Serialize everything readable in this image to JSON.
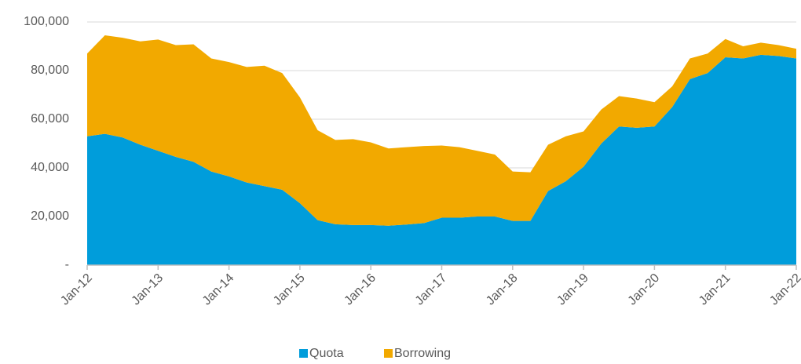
{
  "chart_data": {
    "type": "stacked-area",
    "categories": [
      "Jan-12",
      null,
      null,
      null,
      "Jan-13",
      null,
      null,
      null,
      "Jan-14",
      null,
      null,
      null,
      "Jan-15",
      null,
      null,
      null,
      "Jan-16",
      null,
      null,
      null,
      "Jan-17",
      null,
      null,
      null,
      "Jan-18",
      null,
      null,
      null,
      "Jan-19",
      null,
      null,
      null,
      "Jan-20",
      null,
      null,
      null,
      "Jan-21",
      null,
      null,
      null,
      "Jan-22"
    ],
    "series": [
      {
        "name": "Quota",
        "color": "#009ddb",
        "values": [
          53000,
          54000,
          52500,
          49500,
          47000,
          44500,
          42500,
          38500,
          36500,
          34000,
          32500,
          31000,
          25500,
          18500,
          16800,
          16500,
          16500,
          16200,
          16700,
          17300,
          19500,
          19500,
          20000,
          20000,
          18200,
          18200,
          30500,
          34500,
          40500,
          50000,
          57000,
          56500,
          57000,
          65000,
          76500,
          79000,
          85500,
          85000,
          86500,
          86000,
          85000
        ]
      },
      {
        "name": "Borrowing",
        "color": "#f2a900",
        "values": [
          34000,
          40500,
          41000,
          42500,
          45800,
          46000,
          48300,
          46500,
          47000,
          47500,
          49500,
          48000,
          43500,
          37000,
          34700,
          35300,
          34000,
          31800,
          31800,
          31700,
          29700,
          29000,
          27000,
          25500,
          20300,
          20000,
          19000,
          18500,
          14500,
          14000,
          12500,
          12000,
          10000,
          8500,
          8500,
          8000,
          7500,
          5000,
          5000,
          4500,
          4000
        ]
      }
    ],
    "ylim": [
      0,
      100000
    ],
    "yticks": [
      {
        "value": 0,
        "label": "-"
      },
      {
        "value": 20000,
        "label": "20,000"
      },
      {
        "value": 40000,
        "label": "40,000"
      },
      {
        "value": 60000,
        "label": "60,000"
      },
      {
        "value": 80000,
        "label": "80,000"
      },
      {
        "value": 100000,
        "label": "100,000"
      }
    ],
    "grid": true,
    "legend": "bottom"
  }
}
